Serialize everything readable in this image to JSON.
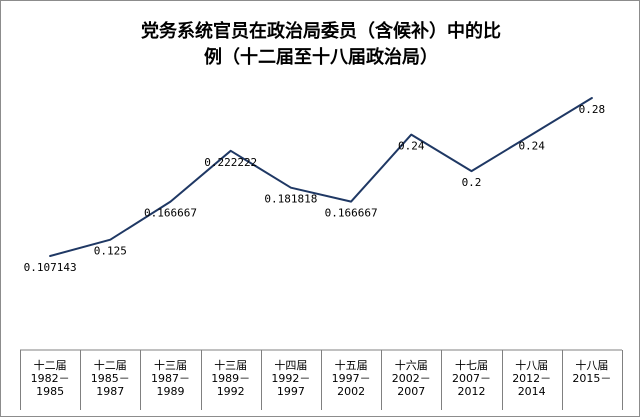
{
  "chart_data": {
    "type": "line",
    "title_lines": [
      "党务系统官员在政治局委员（含候补）中的比",
      "例（十二届至十八届政治局）"
    ],
    "categories": [
      [
        "十二届",
        "1982－",
        "1985"
      ],
      [
        "十二届",
        "1985－",
        "1987"
      ],
      [
        "十三届",
        "1987－",
        "1989"
      ],
      [
        "十三届",
        "1989－",
        "1992"
      ],
      [
        "十四届",
        "1992－",
        "1997"
      ],
      [
        "十五届",
        "1997－",
        "2002"
      ],
      [
        "十六届",
        "2002－",
        "2007"
      ],
      [
        "十七届",
        "2007－",
        "2012"
      ],
      [
        "十八届",
        "2012－",
        "2014"
      ],
      [
        "十八届",
        "2015－",
        ""
      ]
    ],
    "series": [
      {
        "values": [
          0.107143,
          0.125,
          0.166667,
          0.222222,
          0.181818,
          0.166667,
          0.24,
          0.2,
          0.24,
          0.28
        ],
        "labels": [
          "0.107143",
          "0.125",
          "0.166667",
          "0.222222",
          "0.181818",
          "0.166667",
          "0.24",
          "0.2",
          "0.24",
          "0.28"
        ],
        "color": "#1f3864"
      }
    ],
    "ylim": [
      0.05,
      0.3
    ],
    "grid": false,
    "legend": "none"
  }
}
